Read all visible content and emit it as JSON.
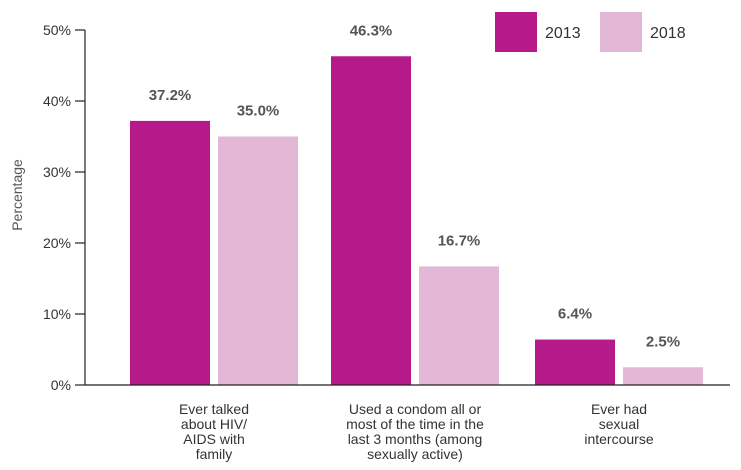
{
  "chart_data": {
    "type": "bar",
    "ylabel": "Percentage",
    "ylim": [
      0,
      50
    ],
    "yticks": [
      "0%",
      "10%",
      "20%",
      "30%",
      "40%",
      "50%"
    ],
    "categories": [
      [
        "Ever talked",
        "about HIV/",
        "AIDS with",
        "family"
      ],
      [
        "Used a condom all or",
        "most of the time in the",
        "last 3 months (among",
        "sexually active)"
      ],
      [
        "Ever had",
        "sexual",
        "intercourse"
      ]
    ],
    "series": [
      {
        "name": "2013",
        "color": "#b5198a",
        "values": [
          37.2,
          46.3,
          6.4
        ],
        "labels": [
          "37.2%",
          "46.3%",
          "6.4%"
        ]
      },
      {
        "name": "2018",
        "color": "#e2b8d6",
        "values": [
          35.0,
          16.7,
          2.5
        ],
        "labels": [
          "35.0%",
          "16.7%",
          "2.5%"
        ]
      }
    ],
    "legend_position": "top-right",
    "grid": false
  }
}
